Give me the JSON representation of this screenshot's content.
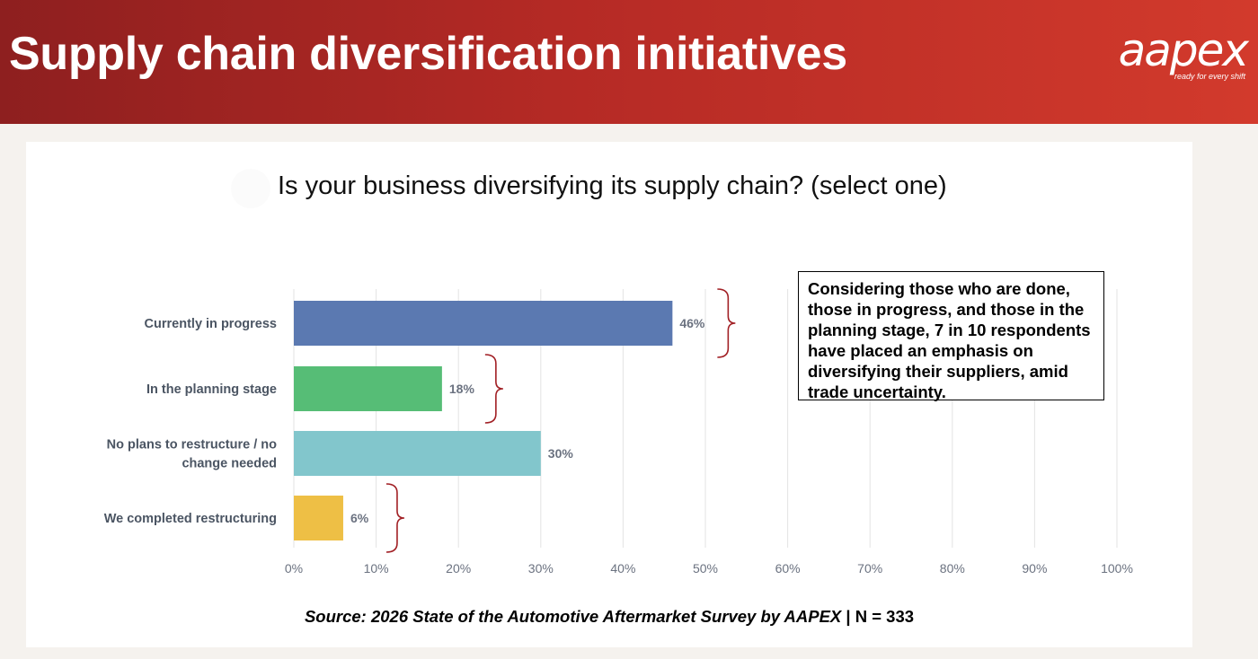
{
  "header": {
    "title": "Supply chain diversification initiatives",
    "logo_word": "aapex",
    "logo_tagline": "ready for every shift"
  },
  "chart_data": {
    "type": "bar",
    "orientation": "horizontal",
    "title": "Is your business diversifying its supply chain? (select one)",
    "categories": [
      [
        "Currently in progress"
      ],
      [
        "In the planning stage"
      ],
      [
        "No plans to restructure / no",
        "change needed"
      ],
      [
        "We completed restructuring"
      ]
    ],
    "values": [
      46,
      18,
      30,
      6
    ],
    "value_labels": [
      "46%",
      "18%",
      "30%",
      "6%"
    ],
    "bar_colors": [
      "#5b79b1",
      "#56bd76",
      "#82c6cc",
      "#eebf45"
    ],
    "xlim": [
      0,
      100
    ],
    "ticks": [
      0,
      10,
      20,
      30,
      40,
      50,
      60,
      70,
      80,
      90,
      100
    ],
    "tick_labels": [
      "0%",
      "10%",
      "20%",
      "30%",
      "40%",
      "50%",
      "60%",
      "70%",
      "80%",
      "90%",
      "100%"
    ],
    "grid": true,
    "brackets_on_categories": [
      0,
      1,
      3
    ],
    "bracket_color": "#a11f24"
  },
  "callout": {
    "text": "Considering those who are done, those in progress, and those in the planning stage, 7 in 10 respondents have placed an emphasis on diversifying their suppliers, amid trade uncertainty."
  },
  "source": {
    "italic_part": "Source: 2026 State of the Automotive Aftermarket Survey by AAPEX",
    "n_part": " | N = 333"
  }
}
